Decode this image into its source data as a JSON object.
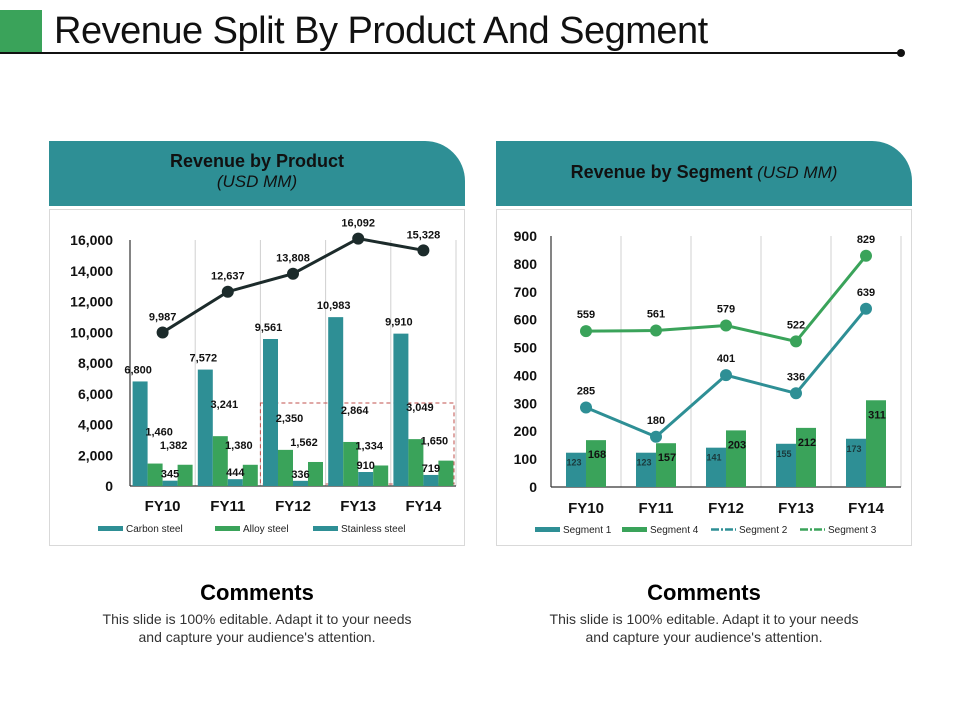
{
  "page": {
    "title": "Revenue Split By Product And Segment",
    "accent_color": "#3aa35a",
    "header_color": "#2e8f95"
  },
  "left_panel": {
    "heading": "Revenue by Product",
    "subheading": "(USD MM)"
  },
  "right_panel": {
    "heading": "Revenue by Segment",
    "subheading": "(USD MM)"
  },
  "comments": [
    {
      "heading": "Comments",
      "body": "This slide is 100% editable. Adapt it to your needs and capture your audience's attention."
    },
    {
      "heading": "Comments",
      "body": "This slide is 100% editable. Adapt it to your needs and capture your audience's attention."
    }
  ],
  "chart_data": [
    {
      "type": "bar",
      "title": "Revenue by Product (USD MM)",
      "xlabel": "",
      "ylabel": "",
      "categories": [
        "FY10",
        "FY11",
        "FY12",
        "FY13",
        "FY14"
      ],
      "ylim": [
        0,
        16000
      ],
      "yticks": [
        0,
        2000,
        4000,
        6000,
        8000,
        10000,
        12000,
        14000,
        16000
      ],
      "ytick_labels": [
        "0",
        "2,000",
        "4,000",
        "6,000",
        "8,000",
        "10,000",
        "12,000",
        "14,000",
        "16,000"
      ],
      "grid": "vertical",
      "legend": "bottom",
      "bar_series": [
        {
          "name": "Carbon steel",
          "color": "#2e8f95",
          "in_legend": true,
          "values": [
            6800,
            7572,
            9561,
            10983,
            9910
          ],
          "labels": [
            "6,800",
            "7,572",
            "9,561",
            "10,983",
            "9,910"
          ]
        },
        {
          "name": "Alloy steel",
          "color": "#3aa35a",
          "in_legend": true,
          "values": [
            1460,
            3241,
            2350,
            2864,
            3049
          ],
          "labels": [
            "1,460",
            "3,241",
            "2,350",
            "2,864",
            "3,049"
          ]
        },
        {
          "name": "Stainless steel",
          "color": "#2e8f95",
          "in_legend": true,
          "values": [
            345,
            444,
            336,
            910,
            719
          ],
          "labels": [
            "345",
            "444",
            "336",
            "910",
            "719"
          ]
        },
        {
          "name": "",
          "color": "#3aa35a",
          "in_legend": false,
          "values": [
            1382,
            1380,
            1562,
            1334,
            1650
          ],
          "labels": [
            "1,382",
            "1,380",
            "1,562",
            "1,334",
            "1,650"
          ]
        }
      ],
      "line_series": [
        {
          "name": "Total",
          "color": "#1c2b2b",
          "values": [
            9987,
            12637,
            13808,
            16092,
            15328
          ],
          "labels": [
            "9,987",
            "12,637",
            "13,808",
            "16,092",
            "15,328"
          ]
        }
      ],
      "legend_entries": [
        "Carbon steel",
        "Alloy steel",
        "Stainless steel"
      ],
      "annotation": "dashed highlight box around FY12–FY14 lower bars"
    },
    {
      "type": "bar",
      "title": "Revenue by Segment (USD MM)",
      "xlabel": "",
      "ylabel": "",
      "categories": [
        "FY10",
        "FY11",
        "FY12",
        "FY13",
        "FY14"
      ],
      "ylim": [
        0,
        900
      ],
      "yticks": [
        0,
        100,
        200,
        300,
        400,
        500,
        600,
        700,
        800,
        900
      ],
      "ytick_labels": [
        "0",
        "100",
        "200",
        "300",
        "400",
        "500",
        "600",
        "700",
        "800",
        "900"
      ],
      "grid": "vertical",
      "legend": "bottom",
      "bar_series": [
        {
          "name": "Segment 1",
          "color": "#2e8f95",
          "values": [
            123,
            123,
            141,
            155,
            173
          ],
          "labels": [
            "123",
            "123",
            "141",
            "155",
            "173"
          ]
        },
        {
          "name": "Segment 4",
          "color": "#3aa35a",
          "values": [
            168,
            157,
            203,
            212,
            311
          ],
          "labels": [
            "168",
            "157",
            "203",
            "212",
            "311"
          ]
        }
      ],
      "line_series": [
        {
          "name": "Segment 2",
          "color": "#2e8f95",
          "values": [
            285,
            180,
            401,
            336,
            639
          ],
          "labels": [
            "285",
            "180",
            "401",
            "336",
            "639"
          ]
        },
        {
          "name": "Segment 3",
          "color": "#3aa35a",
          "values": [
            559,
            561,
            579,
            522,
            829
          ],
          "labels": [
            "559",
            "561",
            "579",
            "522",
            "829"
          ]
        }
      ],
      "legend_entries": [
        "Segment 1",
        "Segment 4",
        "Segment 2",
        "Segment 3"
      ]
    }
  ]
}
